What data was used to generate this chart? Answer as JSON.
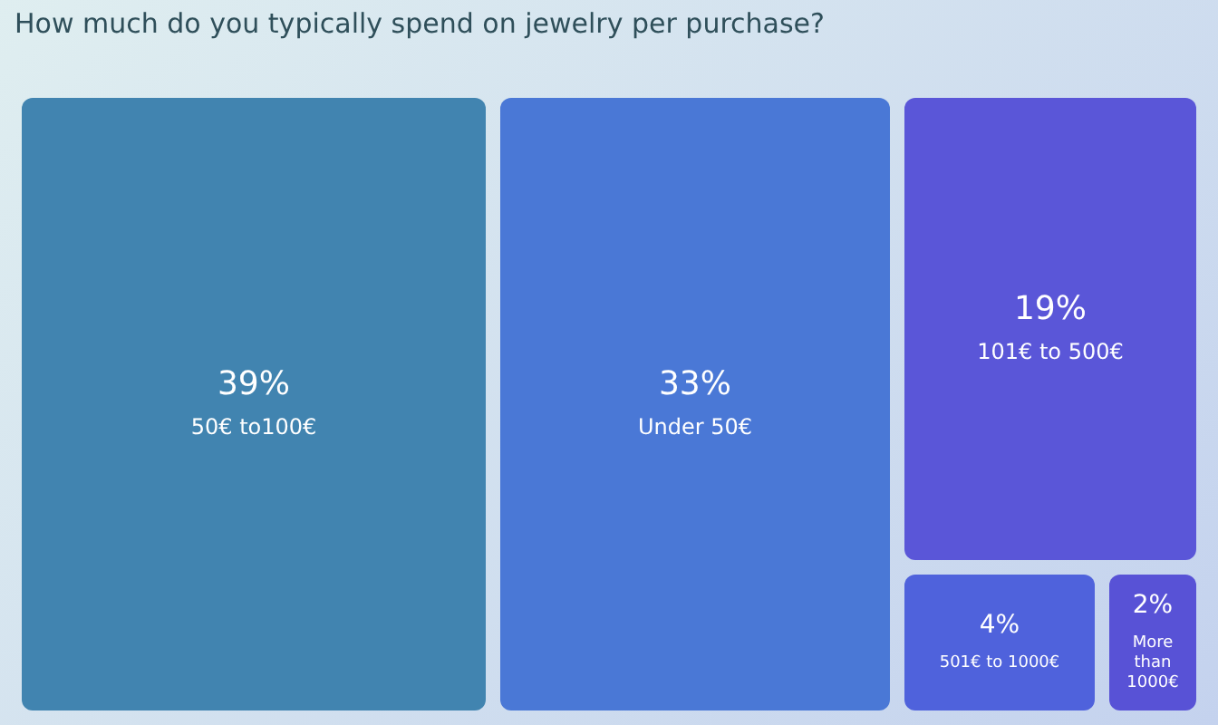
{
  "chart_data": {
    "type": "other",
    "title": "How much do you typically spend on jewelry per purchase?",
    "categories": [
      "50€ to100€",
      "Under 50€",
      "101€ to 500€",
      "501€ to 1000€",
      "More than 1000€"
    ],
    "values": [
      39,
      33,
      19,
      4,
      2
    ],
    "value_labels": [
      "39%",
      "33%",
      "19%",
      "4%",
      "2%"
    ],
    "colors": [
      "#4184b0",
      "#4a78d6",
      "#5a56d8",
      "#4f62dc",
      "#5852d6"
    ]
  }
}
